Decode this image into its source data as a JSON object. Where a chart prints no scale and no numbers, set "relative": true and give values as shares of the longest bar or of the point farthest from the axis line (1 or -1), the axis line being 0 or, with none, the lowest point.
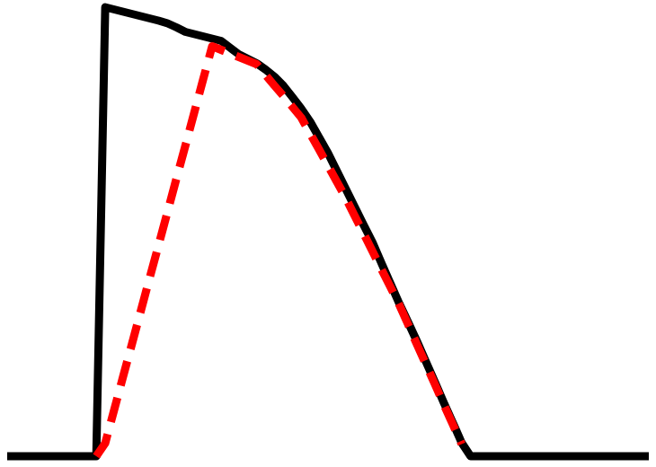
{
  "chart_data": {
    "type": "line",
    "relative": true,
    "categories": [
      null,
      null,
      null,
      null,
      null,
      null,
      null,
      null,
      null,
      null,
      null,
      null,
      null,
      null,
      null,
      null,
      null,
      null,
      null,
      null,
      null,
      null,
      null,
      null,
      null,
      null,
      null,
      null,
      null,
      null,
      null,
      null,
      null,
      null,
      null,
      null,
      null,
      null,
      null,
      null,
      null,
      null,
      null,
      null,
      null,
      null,
      null,
      null,
      null,
      null,
      null,
      null,
      null,
      null,
      null,
      null,
      null,
      null,
      null,
      null,
      null,
      null,
      null,
      null,
      null,
      null,
      null,
      null,
      null,
      null,
      null,
      null,
      null
    ],
    "series": [
      {
        "color": "#000000",
        "line_style": "solid",
        "values": [
          0,
          0,
          0,
          0,
          0,
          0,
          0,
          0,
          0,
          0,
          0,
          1,
          0.995,
          0.99,
          0.985,
          0.98,
          0.975,
          0.97,
          0.964,
          0.955,
          0.945,
          0.94,
          0.935,
          0.93,
          0.925,
          0.91,
          0.895,
          0.885,
          0.875,
          0.861,
          0.845,
          0.825,
          0.8,
          0.774,
          0.745,
          0.71,
          0.675,
          0.635,
          0.595,
          0.555,
          0.515,
          0.476,
          0.43,
          0.385,
          0.34,
          0.298,
          0.255,
          0.21,
          0.165,
          0.119,
          0.075,
          0.03,
          0,
          0,
          0,
          0,
          0,
          0,
          0,
          0,
          0,
          0,
          0,
          0,
          0,
          0,
          0,
          0,
          0,
          0,
          0,
          0,
          0
        ]
      },
      {
        "color": "#ff0000",
        "line_style": "dashed",
        "values": [
          null,
          null,
          null,
          null,
          null,
          null,
          null,
          null,
          null,
          null,
          0,
          0.029,
          0.103,
          0.177,
          0.25,
          0.324,
          0.398,
          0.471,
          0.545,
          0.619,
          0.692,
          0.766,
          0.84,
          0.913,
          0.905,
          0.897,
          0.889,
          0.881,
          0.873,
          0.849,
          0.825,
          0.802,
          0.778,
          0.754,
          0.718,
          0.683,
          0.647,
          0.611,
          0.575,
          0.535,
          0.496,
          0.456,
          0.416,
          0.377,
          0.337,
          0.293,
          0.248,
          0.204,
          0.16,
          0.115,
          0.071,
          0.027,
          null,
          null,
          null,
          null,
          null,
          null,
          null,
          null,
          null,
          null,
          null,
          null,
          null,
          null,
          null,
          null,
          null,
          null,
          null,
          null,
          null
        ]
      }
    ]
  }
}
